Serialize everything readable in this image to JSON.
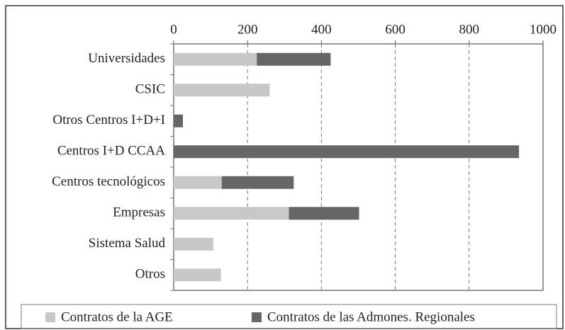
{
  "chart_data": {
    "type": "bar",
    "orientation": "horizontal",
    "stacked": true,
    "categories": [
      "Universidades",
      "CSIC",
      "Otros Centros I+D+I",
      "Centros I+D CCAA",
      "Centros tecnológicos",
      "Empresas",
      "Sistema Salud",
      "Otros"
    ],
    "series": [
      {
        "name": "Contratos de la AGE",
        "color": "#c8c8c8",
        "values": [
          225,
          260,
          0,
          0,
          130,
          312,
          107,
          128
        ]
      },
      {
        "name": "Contratos de las Admones. Regionales",
        "color": "#666666",
        "values": [
          200,
          0,
          25,
          935,
          195,
          190,
          0,
          0
        ]
      }
    ],
    "xlim": [
      0,
      1000
    ],
    "xticks": [
      0,
      200,
      400,
      600,
      800,
      1000
    ],
    "grid": true,
    "legend": "bottom"
  }
}
